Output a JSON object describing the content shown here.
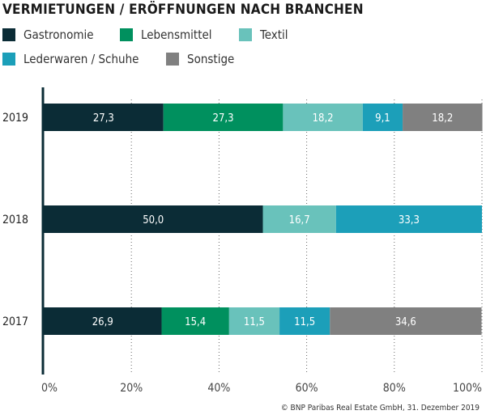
{
  "chart_data": {
    "type": "bar",
    "orientation": "horizontal",
    "stacked": true,
    "title": "VERMIETUNGEN / ERÖFFNUNGEN NACH BRANCHEN",
    "categories": [
      "2019",
      "2018",
      "2017"
    ],
    "series": [
      {
        "name": "Gastronomie",
        "color": "#0b2c36",
        "values": [
          27.3,
          50.0,
          26.9
        ],
        "labels": [
          "27,3",
          "50,0",
          "26,9"
        ]
      },
      {
        "name": "Lebensmittel",
        "color": "#00905e",
        "values": [
          27.3,
          0,
          15.4
        ],
        "labels": [
          "27,3",
          "",
          "15,4"
        ]
      },
      {
        "name": "Textil",
        "color": "#69c2bb",
        "values": [
          18.2,
          16.7,
          11.5
        ],
        "labels": [
          "18,2",
          "16,7",
          "11,5"
        ]
      },
      {
        "name": "Lederwaren / Schuhe",
        "color": "#1c9fb9",
        "values": [
          9.1,
          33.3,
          11.5
        ],
        "labels": [
          "9,1",
          "33,3",
          "11,5"
        ]
      },
      {
        "name": "Sonstige",
        "color": "#808080",
        "values": [
          18.2,
          0,
          34.6
        ],
        "labels": [
          "18,2",
          "",
          "34,6"
        ]
      }
    ],
    "xlim": [
      0,
      100
    ],
    "xticks": [
      "0%",
      "20%",
      "40%",
      "60%",
      "80%",
      "100%"
    ],
    "grid": "vertical dotted",
    "legend_placement": "top"
  },
  "credit": "© BNP Paribas Real Estate GmbH, 31. Dezember 2019"
}
